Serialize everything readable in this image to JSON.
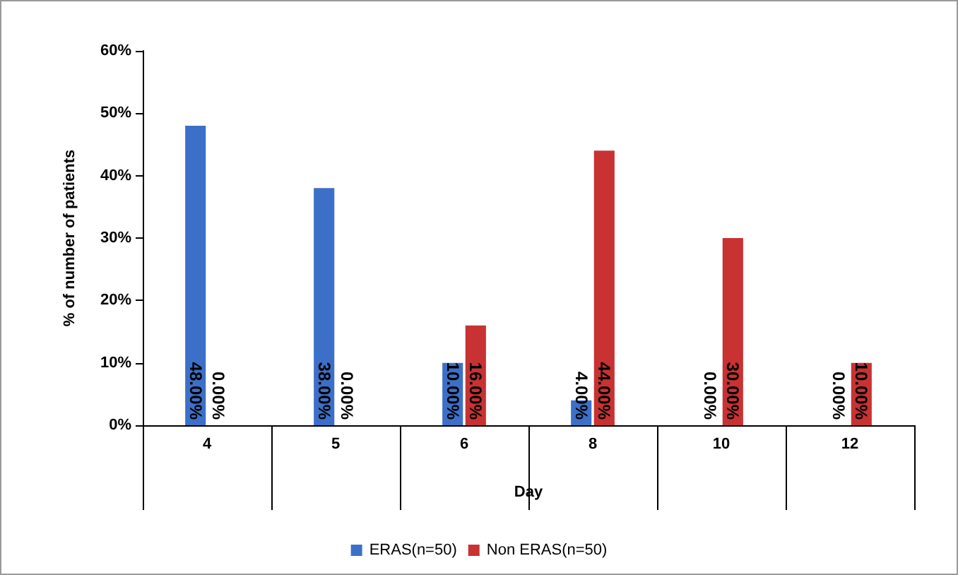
{
  "chart_data": {
    "type": "bar",
    "xlabel": "Day",
    "ylabel": "% of number of patients",
    "categories": [
      "4",
      "5",
      "6",
      "8",
      "10",
      "12"
    ],
    "series": [
      {
        "name": "ERAS(n=50)",
        "color": "#3c70c8",
        "values": [
          48,
          38,
          10,
          4,
          0,
          0
        ],
        "value_labels": [
          "48.00%",
          "38.00%",
          "10.00%",
          "4.00%",
          "0.00%",
          "0.00%"
        ]
      },
      {
        "name": "Non ERAS(n=50)",
        "color": "#c83232",
        "values": [
          0,
          0,
          16,
          44,
          30,
          10
        ],
        "value_labels": [
          "0.00%",
          "0.00%",
          "16.00%",
          "44.00%",
          "30.00%",
          "10.00%"
        ]
      }
    ],
    "ylim": [
      0,
      60
    ],
    "yticks": [
      {
        "value": 0,
        "label": "0%"
      },
      {
        "value": 10,
        "label": "10%"
      },
      {
        "value": 20,
        "label": "20%"
      },
      {
        "value": 30,
        "label": "30%"
      },
      {
        "value": 40,
        "label": "40%"
      },
      {
        "value": 50,
        "label": "50%"
      },
      {
        "value": 60,
        "label": "60%"
      }
    ],
    "grid": false,
    "legend": "bottom"
  }
}
